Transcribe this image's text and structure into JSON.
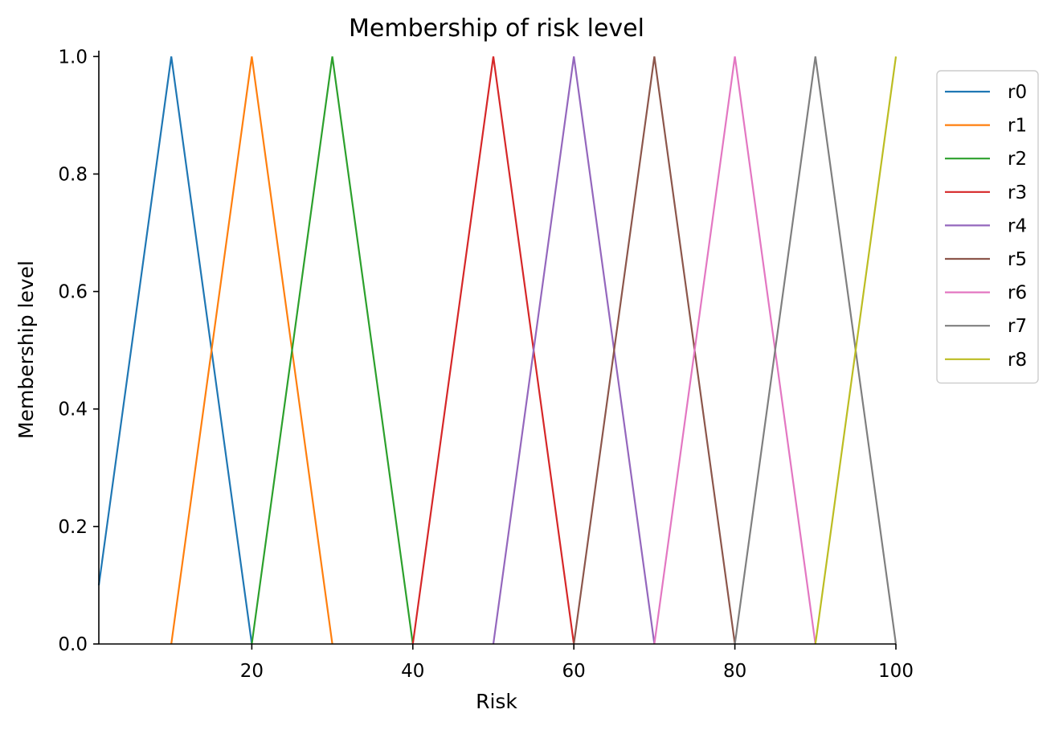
{
  "chart_data": {
    "type": "line",
    "title": "Membership of risk level",
    "xlabel": "Risk",
    "ylabel": "Membership level",
    "xlim": [
      1,
      100
    ],
    "ylim": [
      0,
      1.01
    ],
    "xticks": [
      20,
      40,
      60,
      80,
      100
    ],
    "yticks": [
      0.0,
      0.2,
      0.4,
      0.6,
      0.8,
      1.0
    ],
    "xtick_labels": [
      "20",
      "40",
      "60",
      "80",
      "100"
    ],
    "ytick_labels": [
      "0.0",
      "0.2",
      "0.4",
      "0.6",
      "0.8",
      "1.0"
    ],
    "grid": false,
    "legend_position": "outside-right-top",
    "series": [
      {
        "name": "r0",
        "color": "#1f77b4",
        "x": [
          1,
          10,
          20
        ],
        "y": [
          0.1,
          1,
          0
        ]
      },
      {
        "name": "r1",
        "color": "#ff7f0e",
        "x": [
          10,
          20,
          30
        ],
        "y": [
          0,
          1,
          0
        ]
      },
      {
        "name": "r2",
        "color": "#2ca02c",
        "x": [
          20,
          30,
          40
        ],
        "y": [
          0,
          1,
          0
        ]
      },
      {
        "name": "r3",
        "color": "#d62728",
        "x": [
          40,
          50,
          60
        ],
        "y": [
          0,
          1,
          0
        ]
      },
      {
        "name": "r4",
        "color": "#9467bd",
        "x": [
          50,
          60,
          70
        ],
        "y": [
          0,
          1,
          0
        ]
      },
      {
        "name": "r5",
        "color": "#8c564b",
        "x": [
          60,
          70,
          80
        ],
        "y": [
          0,
          1,
          0
        ]
      },
      {
        "name": "r6",
        "color": "#e377c2",
        "x": [
          70,
          80,
          90
        ],
        "y": [
          0,
          1,
          0
        ]
      },
      {
        "name": "r7",
        "color": "#7f7f7f",
        "x": [
          80,
          90,
          100
        ],
        "y": [
          0,
          1,
          0
        ]
      },
      {
        "name": "r8",
        "color": "#bcbd22",
        "x": [
          90,
          100
        ],
        "y": [
          0,
          1
        ]
      }
    ]
  }
}
